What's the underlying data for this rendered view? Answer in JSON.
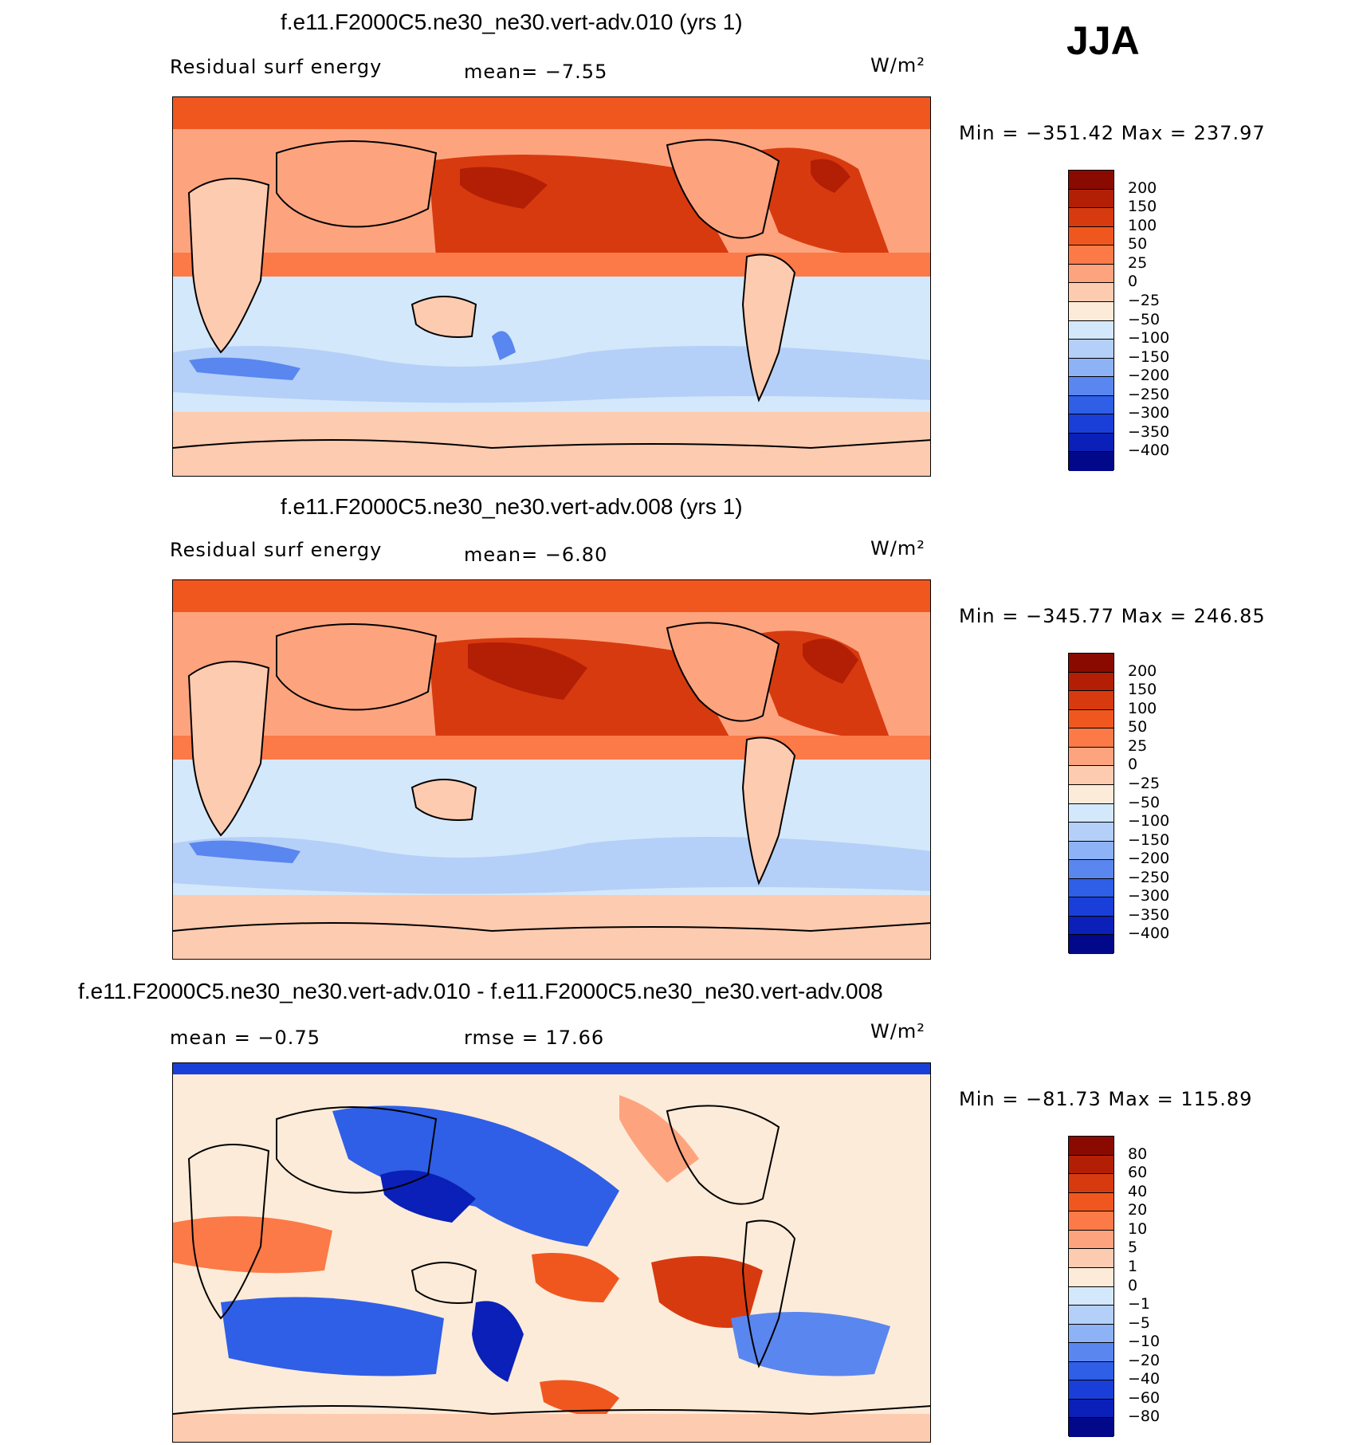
{
  "season": "JJA",
  "panels": [
    {
      "title": "f.e11.F2000C5.ne30_ne30.vert-adv.010 (yrs 1)",
      "left_label": "Residual surf energy",
      "stat_label": "mean=  −7.55",
      "units": "W/m²",
      "minmax": "Min = −351.42 Max = 237.97"
    },
    {
      "title": "f.e11.F2000C5.ne30_ne30.vert-adv.008 (yrs 1)",
      "left_label": "Residual surf energy",
      "stat_label": "mean=  −6.80",
      "units": "W/m²",
      "minmax": "Min = −345.77 Max = 246.85"
    },
    {
      "title": "f.e11.F2000C5.ne30_ne30.vert-adv.010 - f.e11.F2000C5.ne30_ne30.vert-adv.008",
      "left_label": "mean =  −0.75",
      "stat_label": "rmse =  17.66",
      "units": "W/m²",
      "minmax": "Min = −81.73 Max = 115.89"
    }
  ],
  "chart_data": [
    {
      "type": "heatmap",
      "title": "f.e11.F2000C5.ne30_ne30.vert-adv.010 (yrs 1)",
      "variable": "Residual surf energy",
      "units": "W/m²",
      "mean": -7.55,
      "min": -351.42,
      "max": 237.97,
      "colorbar_levels": [
        "200",
        "150",
        "100",
        "50",
        "25",
        "0",
        "−25",
        "−50",
        "−100",
        "−150",
        "−200",
        "−250",
        "−300",
        "−350",
        "−400"
      ],
      "colorbar_colors": [
        "#8b0a00",
        "#b31f05",
        "#d83a0f",
        "#f0571f",
        "#fb7a48",
        "#fda47f",
        "#fdcbb0",
        "#fcebd8",
        "#d4e8fb",
        "#b4d0f8",
        "#8db2f5",
        "#5a86ef",
        "#2f5fe6",
        "#1a3fd8",
        "#0a20b8",
        "#02088a"
      ]
    },
    {
      "type": "heatmap",
      "title": "f.e11.F2000C5.ne30_ne30.vert-adv.008 (yrs 1)",
      "variable": "Residual surf energy",
      "units": "W/m²",
      "mean": -6.8,
      "min": -345.77,
      "max": 246.85,
      "colorbar_levels": [
        "200",
        "150",
        "100",
        "50",
        "25",
        "0",
        "−25",
        "−50",
        "−100",
        "−150",
        "−200",
        "−250",
        "−300",
        "−350",
        "−400"
      ],
      "colorbar_colors": [
        "#8b0a00",
        "#b31f05",
        "#d83a0f",
        "#f0571f",
        "#fb7a48",
        "#fda47f",
        "#fdcbb0",
        "#fcebd8",
        "#d4e8fb",
        "#b4d0f8",
        "#8db2f5",
        "#5a86ef",
        "#2f5fe6",
        "#1a3fd8",
        "#0a20b8",
        "#02088a"
      ]
    },
    {
      "type": "heatmap",
      "title": "f.e11.F2000C5.ne30_ne30.vert-adv.010 - f.e11.F2000C5.ne30_ne30.vert-adv.008",
      "units": "W/m²",
      "mean": -0.75,
      "rmse": 17.66,
      "min": -81.73,
      "max": 115.89,
      "colorbar_levels": [
        "80",
        "60",
        "40",
        "20",
        "10",
        "5",
        "1",
        "0",
        "−1",
        "−5",
        "−10",
        "−20",
        "−40",
        "−60",
        "−80"
      ],
      "colorbar_colors": [
        "#8b0a00",
        "#b31f05",
        "#d83a0f",
        "#f0571f",
        "#fb7a48",
        "#fda47f",
        "#fdcbb0",
        "#fcebd8",
        "#d4e8fb",
        "#b4d0f8",
        "#8db2f5",
        "#5a86ef",
        "#2f5fe6",
        "#1a3fd8",
        "#0a20b8",
        "#02088a"
      ]
    }
  ]
}
